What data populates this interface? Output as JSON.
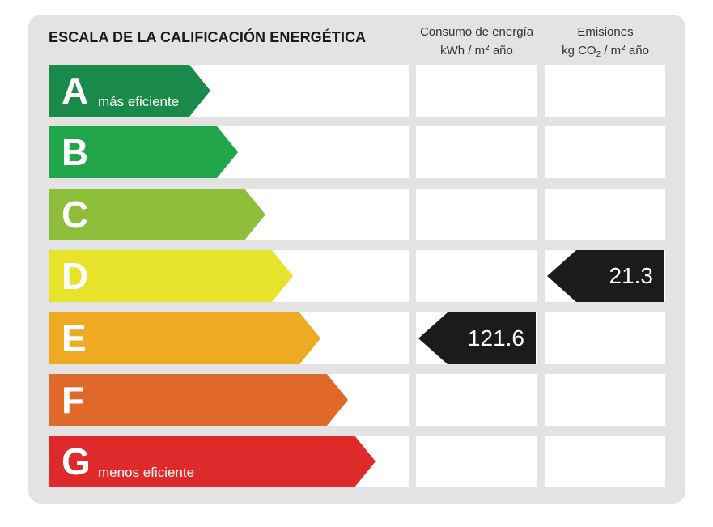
{
  "chart_data": {
    "type": "energy-rating",
    "title": "ESCALA DE LA CALIFICACIÓN ENERGÉTICA",
    "columns": [
      {
        "label_line1": "Consumo de energía",
        "label_line2_pre": "kWh / m",
        "label_line2_sup": "2",
        "label_line2_post": " año"
      },
      {
        "label_line1": "Emisiones",
        "label_line2_pre": "kg CO",
        "label_line2_sub": "2",
        "label_line2_post": " / m",
        "label_line2_sup": "2",
        "label_line2_end": " año"
      }
    ],
    "classes": [
      {
        "letter": "A",
        "color": "#1a8a4a",
        "note": "más eficiente"
      },
      {
        "letter": "B",
        "color": "#21a64a",
        "note": ""
      },
      {
        "letter": "C",
        "color": "#8ebf3b",
        "note": ""
      },
      {
        "letter": "D",
        "color": "#e7e22a",
        "note": ""
      },
      {
        "letter": "E",
        "color": "#eeaa22",
        "note": ""
      },
      {
        "letter": "F",
        "color": "#e0692a",
        "note": ""
      },
      {
        "letter": "G",
        "color": "#df2a2b",
        "note": "menos eficiente"
      }
    ],
    "ratings": {
      "consumo": {
        "class": "E",
        "value": "121.6"
      },
      "emisiones": {
        "class": "D",
        "value": "21.3"
      }
    },
    "marker_color": "#1b1b1b"
  }
}
